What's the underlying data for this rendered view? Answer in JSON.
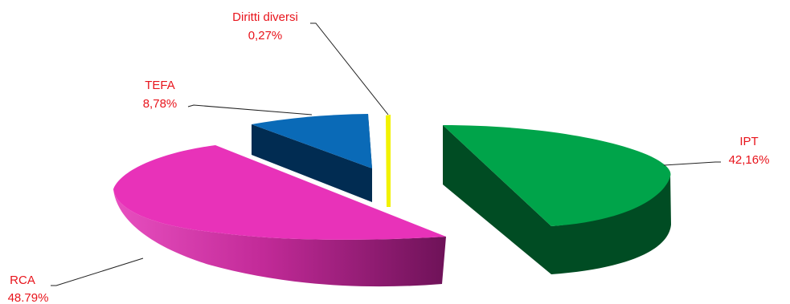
{
  "chart_data": {
    "type": "pie",
    "style": "3d-exploded",
    "title": "",
    "slices": [
      {
        "name": "IPT",
        "value_label": "42,16%",
        "value": 42.16,
        "color": "#00a44a",
        "side_color": "#004c23"
      },
      {
        "name": "RCA",
        "value_label": "48.79%",
        "value": 48.79,
        "color": "#e832b9",
        "side_color": "#7a1360"
      },
      {
        "name": "TEFA",
        "value_label": "8,78%",
        "value": 8.78,
        "color": "#0a6ab7",
        "side_color": "#012c52"
      },
      {
        "name": "Diritti diversi",
        "value_label": "0,27%",
        "value": 0.27,
        "color": "#f2f200",
        "side_color": "#8a8a00"
      }
    ],
    "label_color": "#e8141c",
    "legend": "none"
  }
}
